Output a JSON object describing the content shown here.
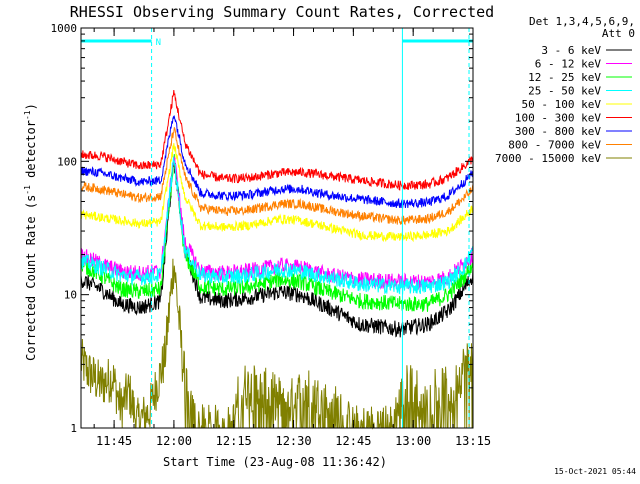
{
  "chart_data": {
    "type": "line",
    "title": "RHESSI Observing Summary Count Rates, Corrected",
    "xlabel": "Start Time (23-Aug-08 11:36:42)",
    "ylabel_main": "Corrected Count Rate (s",
    "ylabel_sup1": "-1",
    "ylabel_mid": " detector",
    "ylabel_sup2": "-1",
    "ylabel_end": ")",
    "yscale": "log",
    "ylim": [
      1,
      1000
    ],
    "xlim_minutes": [
      0,
      98.3
    ],
    "y_ticks": [
      {
        "value": 1,
        "label": "1"
      },
      {
        "value": 10,
        "label": "10"
      },
      {
        "value": 100,
        "label": "100"
      },
      {
        "value": 1000,
        "label": "1000"
      }
    ],
    "x_ticks": [
      {
        "minute": 8.3,
        "label": "11:45"
      },
      {
        "minute": 23.3,
        "label": "12:00"
      },
      {
        "minute": 38.3,
        "label": "12:15"
      },
      {
        "minute": 53.3,
        "label": "12:30"
      },
      {
        "minute": 68.3,
        "label": "12:45"
      },
      {
        "minute": 83.3,
        "label": "13:00"
      },
      {
        "minute": 98.3,
        "label": "13:15"
      }
    ],
    "legend": {
      "header1": "Det 1,3,4,5,6,9,",
      "header2": "Att 0",
      "placement": "top-right, outside plot"
    },
    "series": [
      {
        "name": "3 - 6 keV",
        "color": "#000000",
        "points": [
          [
            0,
            13
          ],
          [
            5,
            11
          ],
          [
            10,
            8.5
          ],
          [
            15,
            8
          ],
          [
            20,
            9
          ],
          [
            23.3,
            105
          ],
          [
            26,
            22
          ],
          [
            30,
            9.5
          ],
          [
            36,
            9
          ],
          [
            42,
            9.5
          ],
          [
            50,
            10.5
          ],
          [
            55,
            10
          ],
          [
            62,
            8
          ],
          [
            70,
            6
          ],
          [
            80,
            5.5
          ],
          [
            87,
            6
          ],
          [
            92,
            7.5
          ],
          [
            96,
            11
          ],
          [
            98.3,
            14
          ]
        ]
      },
      {
        "name": "6 - 12 keV",
        "color": "#ff00ff",
        "points": [
          [
            0,
            20
          ],
          [
            5,
            17
          ],
          [
            10,
            15
          ],
          [
            15,
            14.5
          ],
          [
            20,
            15
          ],
          [
            23.3,
            110
          ],
          [
            26,
            25
          ],
          [
            30,
            15
          ],
          [
            36,
            14.5
          ],
          [
            42,
            15
          ],
          [
            50,
            16.5
          ],
          [
            55,
            16
          ],
          [
            62,
            14
          ],
          [
            70,
            13
          ],
          [
            80,
            12.5
          ],
          [
            87,
            12.5
          ],
          [
            92,
            13.5
          ],
          [
            96,
            17
          ],
          [
            98.3,
            20
          ]
        ]
      },
      {
        "name": "12 - 25 keV",
        "color": "#00ff00",
        "points": [
          [
            0,
            17
          ],
          [
            5,
            14
          ],
          [
            10,
            11
          ],
          [
            15,
            10.5
          ],
          [
            20,
            11
          ],
          [
            23.3,
            105
          ],
          [
            26,
            20
          ],
          [
            30,
            11.5
          ],
          [
            36,
            11
          ],
          [
            42,
            11.5
          ],
          [
            50,
            13
          ],
          [
            55,
            12.5
          ],
          [
            62,
            10.5
          ],
          [
            70,
            9
          ],
          [
            80,
            8.5
          ],
          [
            87,
            8.5
          ],
          [
            92,
            10
          ],
          [
            96,
            13.5
          ],
          [
            98.3,
            17
          ]
        ]
      },
      {
        "name": "25 - 50 keV",
        "color": "#00ffff",
        "points": [
          [
            0,
            18
          ],
          [
            5,
            16
          ],
          [
            10,
            14
          ],
          [
            15,
            13.5
          ],
          [
            20,
            14
          ],
          [
            23.3,
            108
          ],
          [
            26,
            22
          ],
          [
            30,
            14
          ],
          [
            36,
            13.5
          ],
          [
            42,
            14
          ],
          [
            50,
            15.5
          ],
          [
            55,
            15
          ],
          [
            62,
            13.5
          ],
          [
            70,
            12
          ],
          [
            80,
            11.5
          ],
          [
            87,
            11.5
          ],
          [
            92,
            12.5
          ],
          [
            96,
            16
          ],
          [
            98.3,
            22
          ]
        ]
      },
      {
        "name": "50 - 100 keV",
        "color": "#ffff00",
        "points": [
          [
            0,
            40
          ],
          [
            5,
            38
          ],
          [
            10,
            36
          ],
          [
            15,
            34
          ],
          [
            20,
            35
          ],
          [
            23.3,
            135
          ],
          [
            26,
            55
          ],
          [
            30,
            33
          ],
          [
            36,
            32
          ],
          [
            42,
            33
          ],
          [
            50,
            37
          ],
          [
            55,
            36
          ],
          [
            62,
            32
          ],
          [
            70,
            28
          ],
          [
            80,
            27
          ],
          [
            87,
            28
          ],
          [
            92,
            30
          ],
          [
            96,
            38
          ],
          [
            98.3,
            45
          ]
        ]
      },
      {
        "name": "100 - 300 keV",
        "color": "#ff0000",
        "points": [
          [
            0,
            112
          ],
          [
            5,
            110
          ],
          [
            10,
            100
          ],
          [
            15,
            92
          ],
          [
            20,
            95
          ],
          [
            23.3,
            330
          ],
          [
            26,
            140
          ],
          [
            30,
            80
          ],
          [
            36,
            74
          ],
          [
            42,
            75
          ],
          [
            50,
            82
          ],
          [
            55,
            83
          ],
          [
            62,
            78
          ],
          [
            70,
            72
          ],
          [
            80,
            66
          ],
          [
            87,
            67
          ],
          [
            92,
            75
          ],
          [
            96,
            92
          ],
          [
            98.3,
            105
          ]
        ]
      },
      {
        "name": "300 - 800 keV",
        "color": "#0000ff",
        "points": [
          [
            0,
            85
          ],
          [
            5,
            82
          ],
          [
            10,
            75
          ],
          [
            15,
            70
          ],
          [
            20,
            72
          ],
          [
            23.3,
            230
          ],
          [
            26,
            100
          ],
          [
            30,
            58
          ],
          [
            36,
            55
          ],
          [
            42,
            56
          ],
          [
            50,
            62
          ],
          [
            55,
            62
          ],
          [
            62,
            56
          ],
          [
            70,
            52
          ],
          [
            80,
            48
          ],
          [
            87,
            49
          ],
          [
            92,
            55
          ],
          [
            96,
            70
          ],
          [
            98.3,
            82
          ]
        ]
      },
      {
        "name": "800 - 7000 keV",
        "color": "#ff8000",
        "points": [
          [
            0,
            65
          ],
          [
            5,
            62
          ],
          [
            10,
            57
          ],
          [
            15,
            53
          ],
          [
            20,
            55
          ],
          [
            23.3,
            175
          ],
          [
            26,
            78
          ],
          [
            30,
            45
          ],
          [
            36,
            42
          ],
          [
            42,
            43
          ],
          [
            50,
            48
          ],
          [
            55,
            48
          ],
          [
            62,
            43
          ],
          [
            70,
            39
          ],
          [
            80,
            36
          ],
          [
            87,
            37
          ],
          [
            92,
            42
          ],
          [
            96,
            53
          ],
          [
            98.3,
            62
          ]
        ]
      },
      {
        "name": "7000 - 15000 keV",
        "color": "#808000",
        "points": [
          [
            0,
            3.2
          ],
          [
            2,
            2.6
          ],
          [
            5,
            2.1
          ],
          [
            8,
            2.4
          ],
          [
            10,
            1.4
          ],
          [
            12,
            1.9
          ],
          [
            14,
            1.1
          ],
          [
            17,
            1.3
          ],
          [
            19,
            2.1
          ],
          [
            21,
            3.3
          ],
          [
            23.3,
            18
          ],
          [
            25.5,
            3.1
          ],
          [
            27,
            1.4
          ],
          [
            30,
            1
          ],
          [
            38,
            1
          ],
          [
            40,
            2.1
          ],
          [
            46,
            1.9
          ],
          [
            52,
            1.5
          ],
          [
            56,
            2
          ],
          [
            60,
            1.6
          ],
          [
            64,
            1.4
          ],
          [
            68,
            1
          ],
          [
            78,
            1
          ],
          [
            80,
            1.6
          ],
          [
            83,
            2.4
          ],
          [
            86,
            1.4
          ],
          [
            89,
            2.1
          ],
          [
            93,
            1.8
          ],
          [
            96,
            2.9
          ],
          [
            98.3,
            3.4
          ]
        ]
      }
    ],
    "markers": {
      "line_color": "#00ffff",
      "night_label": "N",
      "night_intervals": [
        [
          0,
          17.7
        ],
        [
          80.6,
          98.3
        ]
      ],
      "dashed_minutes": [
        17.7,
        97.3
      ],
      "solid_minutes": [
        0,
        80.6
      ]
    },
    "grid": false
  },
  "footer": {
    "timestamp": "15-Oct-2021 05:44"
  }
}
